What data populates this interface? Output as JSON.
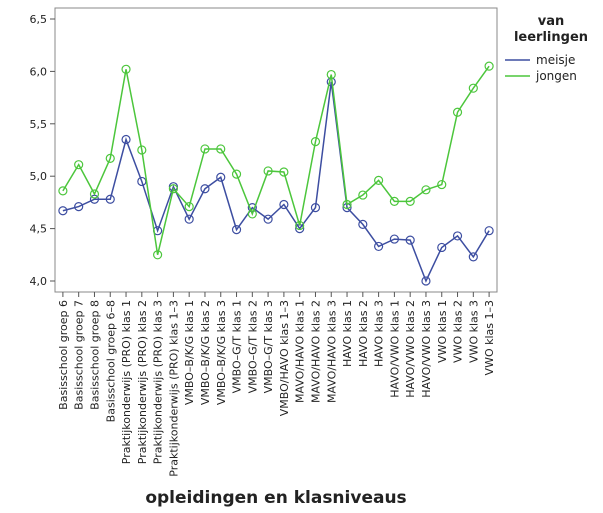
{
  "chart_data": {
    "type": "line",
    "x_label": "opleidingen en klasniveaus",
    "legend_title": "van leerlingen",
    "categories": [
      "Basisschool groep 6",
      "Basisschool groep 7",
      "Basisschool groep 8",
      "Basisschool groep 6–8",
      "Praktijkonderwijs (PRO) klas 1",
      "Praktijkonderwijs (PRO) klas 2",
      "Praktijkonderwijs (PRO) klas 3",
      "Praktijkonderwijs (PRO) klas 1–3",
      "VMBO–B/K/G klas 1",
      "VMBO–B/K/G klas 2",
      "VMBO–B/K/G klas 3",
      "VMBO–G/T klas 1",
      "VMBO–G/T klas 2",
      "VMBO–G/T klas 3",
      "VMBO/HAVO klas 1–3",
      "MAVO/HAVO klas 1",
      "MAVO/HAVO klas 2",
      "MAVO/HAVO klas 3",
      "HAVO klas 1",
      "HAVO klas 2",
      "HAVO klas 3",
      "HAVO/VWO klas 1",
      "HAVO/VWO klas 2",
      "HAVO/VWO klas 3",
      "VWO klas 1",
      "VWO klas 2",
      "VWO klas 3",
      "VWO klas 1–3"
    ],
    "series": [
      {
        "name": "meisje",
        "color": "#3d4ea1",
        "values": [
          4.67,
          4.71,
          4.78,
          4.78,
          5.35,
          4.95,
          4.48,
          4.9,
          4.59,
          4.88,
          4.99,
          4.49,
          4.7,
          4.59,
          4.73,
          4.5,
          4.7,
          5.9,
          4.7,
          4.54,
          4.33,
          4.4,
          4.39,
          4.0,
          4.32,
          4.43,
          4.23,
          4.48
        ]
      },
      {
        "name": "jongen",
        "color": "#4cc63c",
        "values": [
          4.86,
          5.11,
          4.83,
          5.17,
          6.02,
          5.25,
          4.25,
          4.88,
          4.71,
          5.26,
          5.26,
          5.02,
          4.64,
          5.05,
          5.04,
          4.53,
          5.33,
          5.97,
          4.73,
          4.82,
          4.96,
          4.76,
          4.76,
          4.87,
          4.92,
          5.61,
          5.84,
          6.05
        ]
      }
    ],
    "ylim": [
      3.895,
      6.605
    ],
    "yticks": [
      {
        "value": 4.0,
        "label": "4,0"
      },
      {
        "value": 4.5,
        "label": "4,5"
      },
      {
        "value": 5.0,
        "label": "5,0"
      },
      {
        "value": 5.5,
        "label": "5,5"
      },
      {
        "value": 6.0,
        "label": "6,0"
      },
      {
        "value": 6.5,
        "label": "6,5"
      }
    ],
    "grid": false
  }
}
